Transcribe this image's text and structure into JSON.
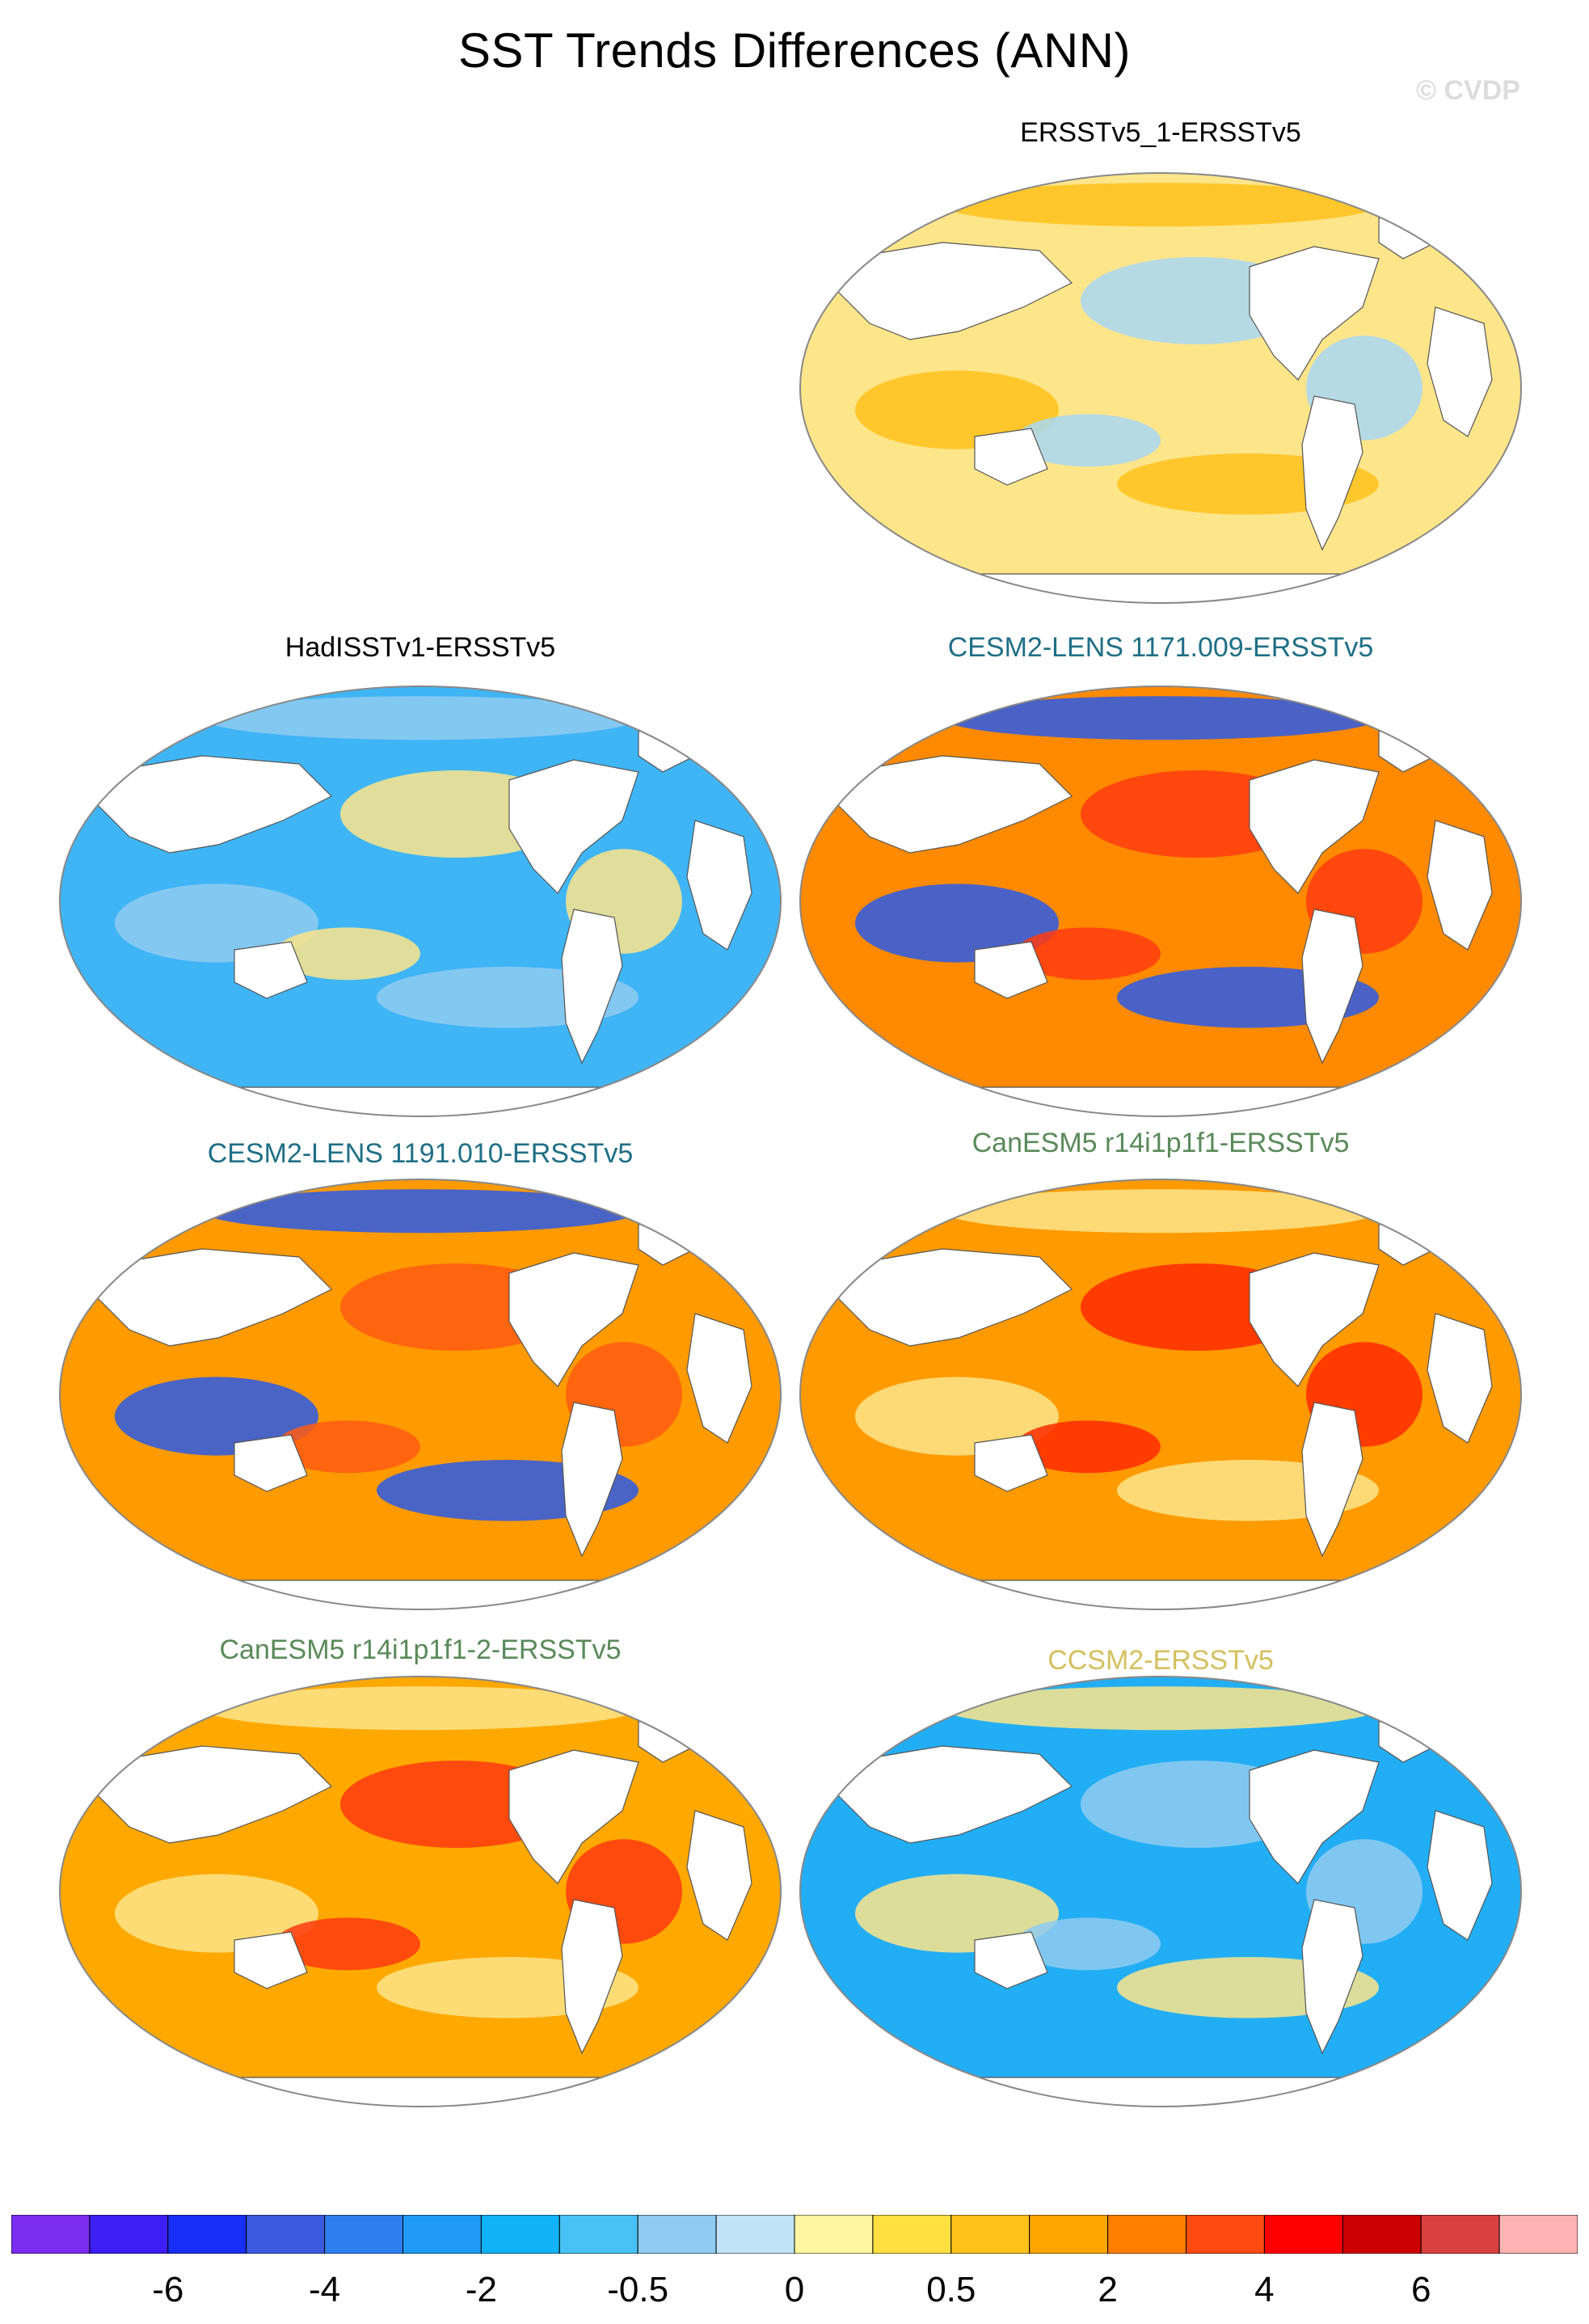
{
  "figure": {
    "title": "SST Trends Differences (ANN)",
    "watermark": "© CVDP"
  },
  "panels": [
    {
      "id": "ersst-1",
      "title": "ERSSTv5_1-ERSSTv5",
      "title_color": "#000000",
      "base_fill": "#fde58a",
      "patch_fill": "#a9d8f2",
      "accent_fill": "#ffc21a"
    },
    {
      "id": "hadisst",
      "title": "HadISSTv1-ERSSTv5",
      "title_color": "#000000",
      "base_fill": "#3fb5f5",
      "patch_fill": "#fde58a",
      "accent_fill": "#8fcbf0"
    },
    {
      "id": "cesm2-1171",
      "title": "CESM2-LENS 1171.009-ERSSTv5",
      "title_color": "#1f6f86",
      "base_fill": "#ff8a00",
      "patch_fill": "#ff3b10",
      "accent_fill": "#2a5be8"
    },
    {
      "id": "cesm2-1191",
      "title": "CESM2-LENS 1191.010-ERSSTv5",
      "title_color": "#1f6f86",
      "base_fill": "#ff9a00",
      "patch_fill": "#ff5a10",
      "accent_fill": "#2a5be8"
    },
    {
      "id": "canesm5-1",
      "title": "CanESM5 r14i1p1f1-ERSSTv5",
      "title_color": "#5a8a5a",
      "base_fill": "#ff9a00",
      "patch_fill": "#ff2a00",
      "accent_fill": "#fde58a"
    },
    {
      "id": "canesm5-2",
      "title": "CanESM5 r14i1p1f1-2-ERSSTv5",
      "title_color": "#5a8a5a",
      "base_fill": "#ffa800",
      "patch_fill": "#ff3a10",
      "accent_fill": "#fde58a"
    },
    {
      "id": "ccsm2",
      "title": "CCSM2-ERSSTv5",
      "title_color": "#d4c060",
      "base_fill": "#22aef5",
      "patch_fill": "#8fcbf0",
      "accent_fill": "#fde58a"
    }
  ],
  "colorbar": {
    "colors": [
      "#7b2df0",
      "#3d1ef5",
      "#1830f5",
      "#3a5ae0",
      "#2f7ef0",
      "#1f9af5",
      "#12b2f8",
      "#48c2f5",
      "#8fcbf0",
      "#c1e3f7",
      "#fff5a0",
      "#ffe040",
      "#ffc21a",
      "#ffa500",
      "#ff7e00",
      "#ff4a10",
      "#ff0000",
      "#cc0000",
      "#d94040",
      "#ffb3b3"
    ],
    "labels": [
      {
        "text": "-6"
      },
      {
        "text": "-4"
      },
      {
        "text": "-2"
      },
      {
        "text": "-0.5"
      },
      {
        "text": "0"
      },
      {
        "text": "0.5"
      },
      {
        "text": "2"
      },
      {
        "text": "4"
      },
      {
        "text": "6"
      }
    ]
  }
}
